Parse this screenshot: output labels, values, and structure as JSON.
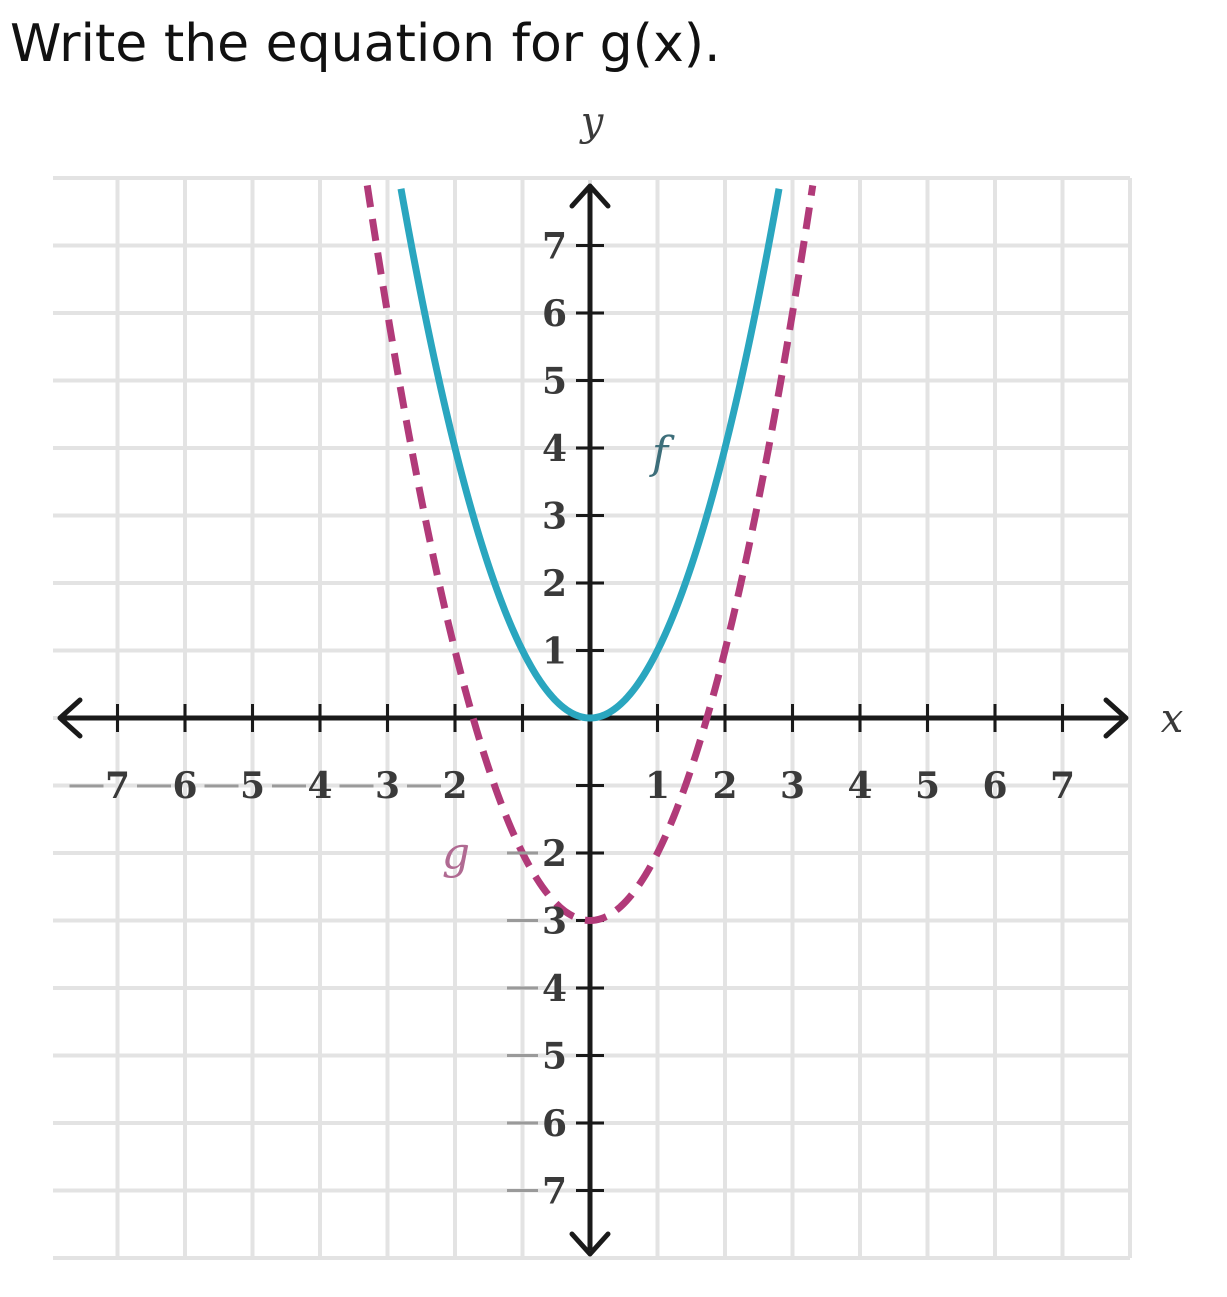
{
  "question": "Write the equation for g(x).",
  "chart_data": {
    "type": "line",
    "xlabel": "x",
    "ylabel": "y",
    "xlim": [
      -8,
      8
    ],
    "ylim": [
      -8,
      8
    ],
    "grid": true,
    "x_ticks": [
      -7,
      -6,
      -5,
      -4,
      -3,
      -2,
      -1,
      1,
      2,
      3,
      4,
      5,
      6,
      7
    ],
    "y_ticks": [
      -7,
      -6,
      -5,
      -4,
      -3,
      -2,
      -1,
      1,
      2,
      3,
      4,
      5,
      6,
      7
    ],
    "x_tick_labels": [
      "7",
      "6",
      "5",
      "4",
      "3",
      "2",
      "",
      "1",
      "2",
      "3",
      "4",
      "5",
      "6",
      "7"
    ],
    "y_tick_labels": [
      "7",
      "6",
      "5",
      "4",
      "3",
      "2",
      "",
      "1",
      "2",
      "3",
      "4",
      "5",
      "6",
      "7"
    ],
    "series": [
      {
        "name": "f",
        "style": "solid",
        "color": "#2aa6bf",
        "x": [
          -2.8,
          -2.5,
          -2,
          -1.5,
          -1,
          -0.5,
          0,
          0.5,
          1,
          1.5,
          2,
          2.5,
          2.8
        ],
        "y": [
          7.84,
          6.25,
          4,
          2.25,
          1,
          0.25,
          0,
          0.25,
          1,
          2.25,
          4,
          6.25,
          7.84
        ]
      },
      {
        "name": "g",
        "style": "dashed",
        "color": "#b13a79",
        "x": [
          -3.3,
          -3,
          -2.5,
          -2,
          -1.5,
          -1,
          -0.5,
          0,
          0.5,
          1,
          1.5,
          2,
          2.5,
          3,
          3.3
        ],
        "y": [
          7.89,
          6,
          3.25,
          1,
          -0.75,
          -2,
          -2.75,
          -3,
          -2.75,
          -2,
          -0.75,
          1,
          3.25,
          6,
          7.89
        ]
      }
    ]
  },
  "colors": {
    "grid": "#e3e3e3",
    "axis": "#1a1a1a",
    "f": "#2aa6bf",
    "g": "#b13a79"
  }
}
